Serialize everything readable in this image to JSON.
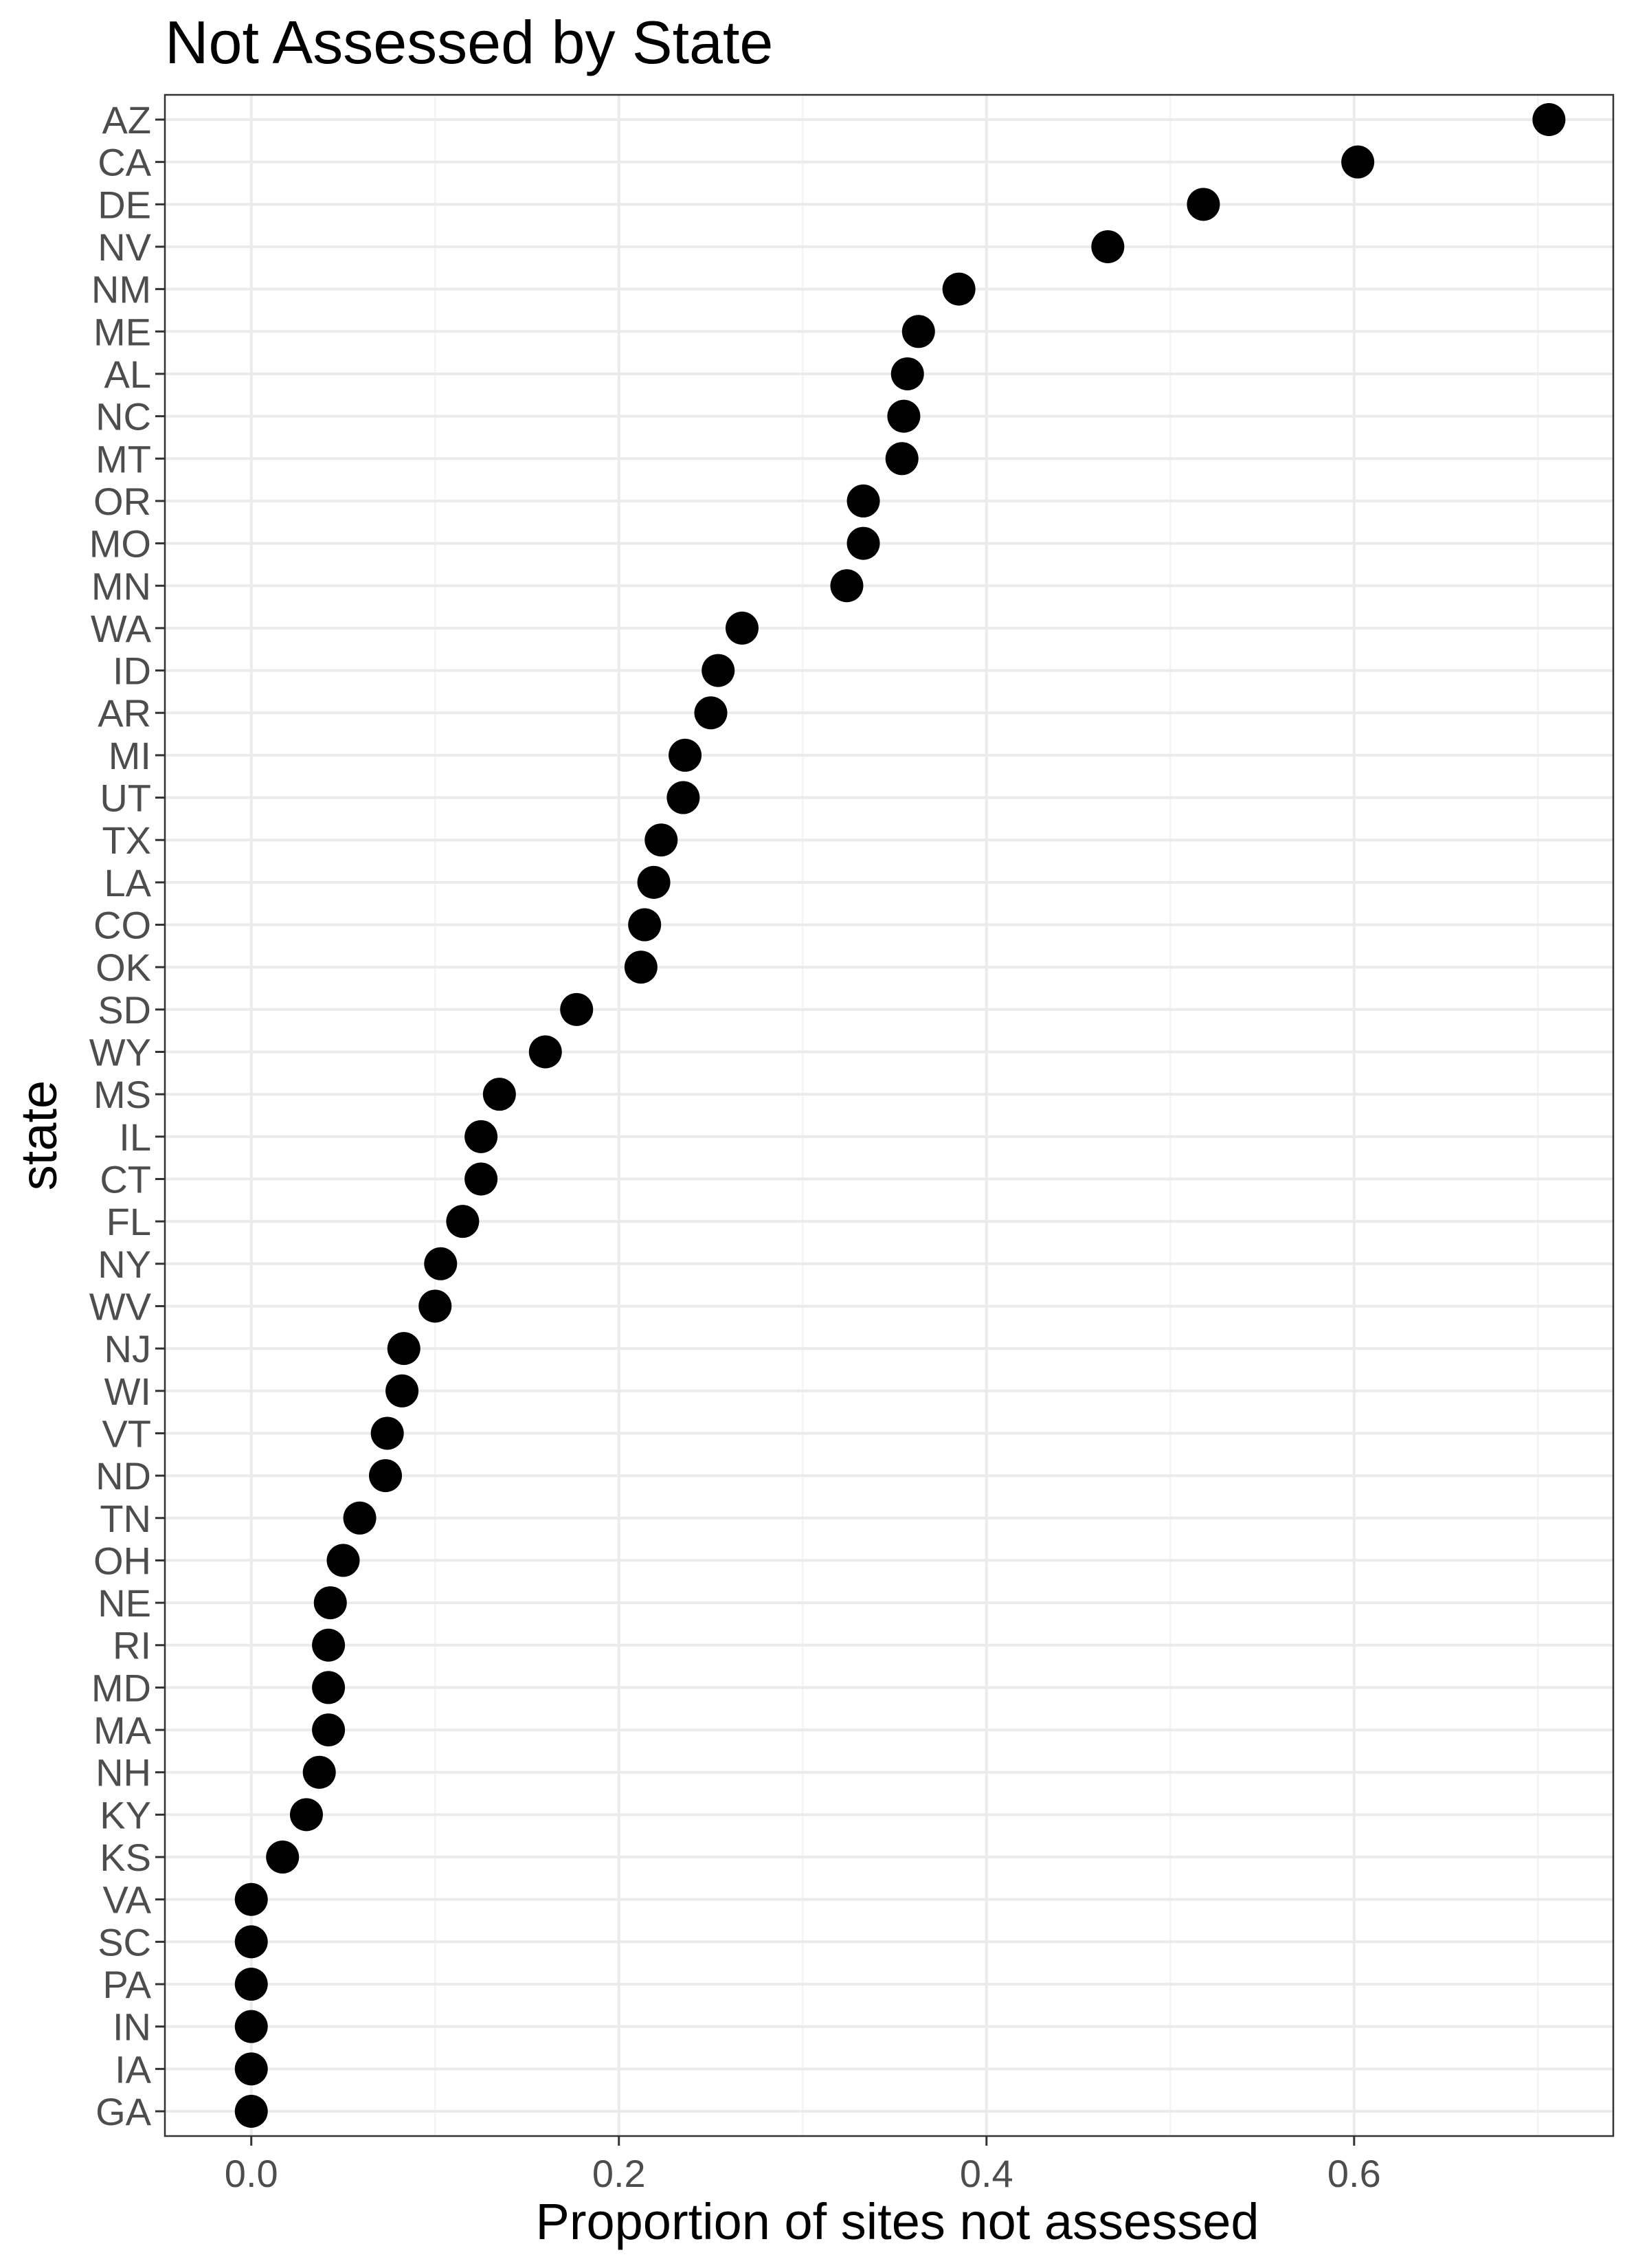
{
  "chart_data": {
    "type": "scatter",
    "title": "Not Assessed by State",
    "xlabel": "Proportion of sites not assessed",
    "ylabel": "state",
    "xlim": [
      -0.047,
      0.741
    ],
    "x_ticks": [
      0.0,
      0.2,
      0.4,
      0.6
    ],
    "x_tick_labels": [
      "0.0",
      "0.2",
      "0.4",
      "0.6"
    ],
    "grid": true,
    "legend": "none",
    "point_color": "#000000",
    "points": [
      {
        "state": "AZ",
        "value": 0.706
      },
      {
        "state": "CA",
        "value": 0.602
      },
      {
        "state": "DE",
        "value": 0.518
      },
      {
        "state": "NV",
        "value": 0.466
      },
      {
        "state": "NM",
        "value": 0.385
      },
      {
        "state": "ME",
        "value": 0.363
      },
      {
        "state": "AL",
        "value": 0.357
      },
      {
        "state": "NC",
        "value": 0.355
      },
      {
        "state": "MT",
        "value": 0.354
      },
      {
        "state": "OR",
        "value": 0.333
      },
      {
        "state": "MO",
        "value": 0.333
      },
      {
        "state": "MN",
        "value": 0.324
      },
      {
        "state": "WA",
        "value": 0.267
      },
      {
        "state": "ID",
        "value": 0.254
      },
      {
        "state": "AR",
        "value": 0.25
      },
      {
        "state": "MI",
        "value": 0.236
      },
      {
        "state": "UT",
        "value": 0.235
      },
      {
        "state": "TX",
        "value": 0.223
      },
      {
        "state": "LA",
        "value": 0.219
      },
      {
        "state": "CO",
        "value": 0.214
      },
      {
        "state": "OK",
        "value": 0.212
      },
      {
        "state": "SD",
        "value": 0.177
      },
      {
        "state": "WY",
        "value": 0.16
      },
      {
        "state": "MS",
        "value": 0.135
      },
      {
        "state": "IL",
        "value": 0.125
      },
      {
        "state": "CT",
        "value": 0.125
      },
      {
        "state": "FL",
        "value": 0.115
      },
      {
        "state": "NY",
        "value": 0.103
      },
      {
        "state": "WV",
        "value": 0.1
      },
      {
        "state": "NJ",
        "value": 0.083
      },
      {
        "state": "WI",
        "value": 0.082
      },
      {
        "state": "VT",
        "value": 0.074
      },
      {
        "state": "ND",
        "value": 0.073
      },
      {
        "state": "TN",
        "value": 0.059
      },
      {
        "state": "OH",
        "value": 0.05
      },
      {
        "state": "NE",
        "value": 0.043
      },
      {
        "state": "RI",
        "value": 0.042
      },
      {
        "state": "MD",
        "value": 0.042
      },
      {
        "state": "MA",
        "value": 0.042
      },
      {
        "state": "NH",
        "value": 0.037
      },
      {
        "state": "KY",
        "value": 0.03
      },
      {
        "state": "KS",
        "value": 0.017
      },
      {
        "state": "VA",
        "value": 0.0
      },
      {
        "state": "SC",
        "value": 0.0
      },
      {
        "state": "PA",
        "value": 0.0
      },
      {
        "state": "IN",
        "value": 0.0
      },
      {
        "state": "IA",
        "value": 0.0
      },
      {
        "state": "GA",
        "value": 0.0
      }
    ]
  }
}
